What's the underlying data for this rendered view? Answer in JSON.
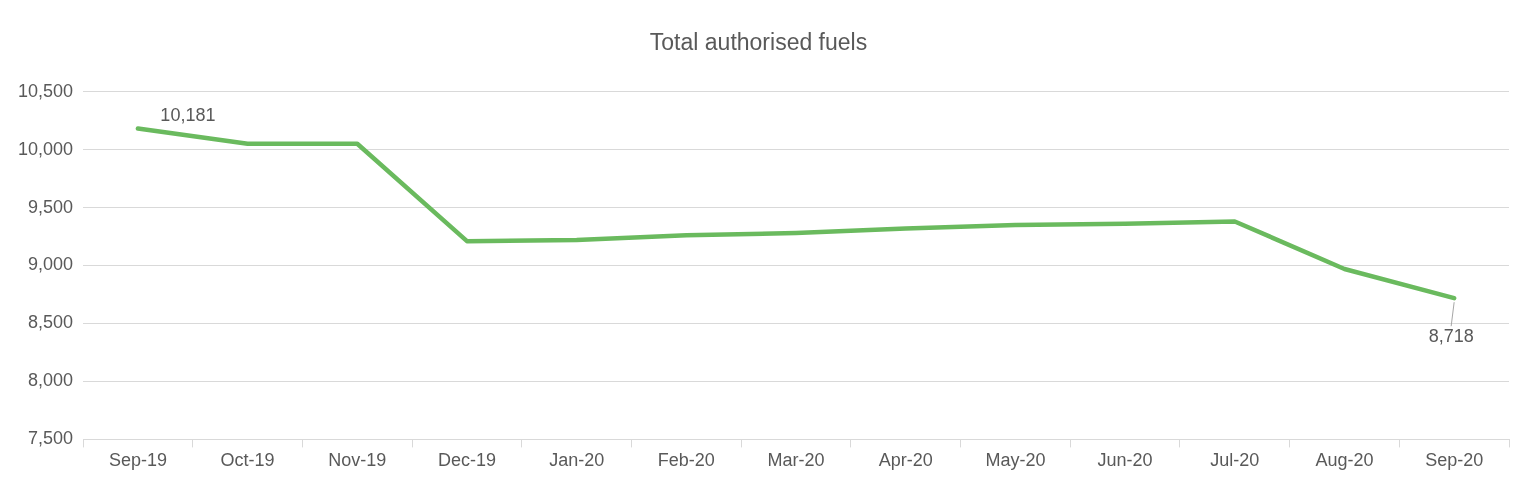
{
  "chart_data": {
    "type": "line",
    "title": "Total authorised fuels",
    "categories": [
      "Sep-19",
      "Oct-19",
      "Nov-19",
      "Dec-19",
      "Jan-20",
      "Feb-20",
      "Mar-20",
      "Apr-20",
      "May-20",
      "Jun-20",
      "Jul-20",
      "Aug-20",
      "Sep-20"
    ],
    "series": [
      {
        "color": "#6aba5e",
        "values": [
          10181,
          10050,
          10050,
          9210,
          9220,
          9260,
          9280,
          9320,
          9350,
          9360,
          9380,
          8970,
          8718
        ],
        "value_labels": [
          "10,181",
          null,
          null,
          null,
          null,
          null,
          null,
          null,
          null,
          null,
          null,
          null,
          "8,718"
        ]
      }
    ],
    "ylim": [
      7500,
      10500
    ],
    "yticks": [
      {
        "value": 7500,
        "label": "7,500"
      },
      {
        "value": 8000,
        "label": "8,000"
      },
      {
        "value": 8500,
        "label": "8,500"
      },
      {
        "value": 9000,
        "label": "9,000"
      },
      {
        "value": 9500,
        "label": "9,500"
      },
      {
        "value": 10000,
        "label": "10,000"
      },
      {
        "value": 10500,
        "label": "10,500"
      }
    ],
    "grid": "y",
    "legend": false,
    "marker": "none",
    "line_style": "solid"
  }
}
